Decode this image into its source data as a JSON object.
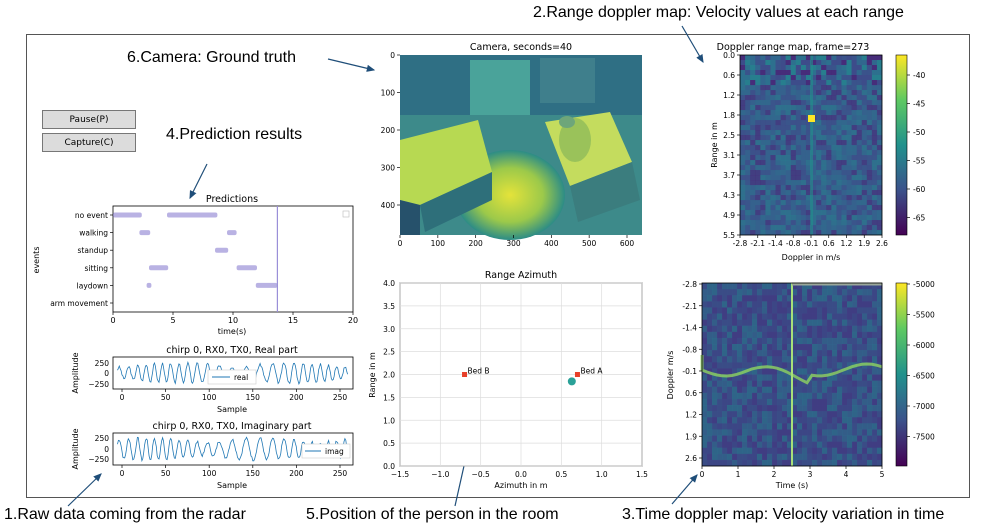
{
  "callouts": {
    "c1": "1.Raw data coming from the radar",
    "c2": "2.Range doppler map: Velocity values at each range",
    "c3": "3.Time doppler map: Velocity variation in time",
    "c4": "4.Prediction results",
    "c5": "5.Position of the person in the room",
    "c6": "6.Camera: Ground truth"
  },
  "buttons": {
    "pause": "Pause(P)",
    "capture": "Capture(C)"
  },
  "colors": {
    "accent_arrow": "#1f4e79",
    "prediction_mark": "#8a7fd0",
    "time_cursor": "#9a8fd8",
    "signal_line": "#1f77b4",
    "marker_red": "#e8402a",
    "marker_teal": "#2aa198",
    "viridis_dark": "#440154",
    "viridis_yellow": "#fde725"
  },
  "predictions": {
    "title": "Predictions",
    "ylabel": "events",
    "xlabel": "time(s)",
    "xticks": [
      "0",
      "5",
      "10",
      "15",
      "20"
    ],
    "current_time": 13.7
  },
  "camera": {
    "title": "Camera, seconds=40",
    "xticks": [
      "0",
      "100",
      "200",
      "300",
      "400",
      "500",
      "600"
    ],
    "yticks": [
      "0",
      "100",
      "200",
      "300",
      "400"
    ]
  },
  "range_doppler": {
    "title": "Doppler range map, frame=273",
    "xlabel": "Doppler in m/s",
    "ylabel": "Range in m",
    "xticks": [
      "-2.8",
      "-2.1",
      "-1.4",
      "-0.8",
      "-0.1",
      "0.6",
      "1.2",
      "1.9",
      "2.6"
    ],
    "yticks": [
      "0.0",
      "0.6",
      "1.2",
      "1.8",
      "2.5",
      "3.1",
      "3.7",
      "4.3",
      "4.9",
      "5.5"
    ],
    "colorbar_ticks": [
      "-40",
      "-45",
      "-50",
      "-55",
      "-60",
      "-65"
    ]
  },
  "time_doppler": {
    "xlabel": "Time (s)",
    "ylabel": "Doppler m/s",
    "xticks": [
      "0",
      "1",
      "2",
      "3",
      "4",
      "5"
    ],
    "yticks": [
      "-2.8",
      "-2.1",
      "-1.4",
      "-0.8",
      "-0.1",
      "0.6",
      "1.2",
      "1.9",
      "2.6"
    ],
    "colorbar_ticks": [
      "-5000",
      "-5500",
      "-6000",
      "-6500",
      "-7000",
      "-7500"
    ],
    "cursor_time": 2.5
  },
  "real_part": {
    "title": "chirp 0, RX0, TX0, Real part",
    "ylabel": "Amplitude",
    "xlabel": "Sample",
    "legend": "real",
    "xticks": [
      "0",
      "50",
      "100",
      "150",
      "200",
      "250"
    ],
    "yticks": [
      "250",
      "0",
      "−250"
    ]
  },
  "imag_part": {
    "title": "chirp 0, RX0, TX0, Imaginary part",
    "ylabel": "Amplitude",
    "xlabel": "Sample",
    "legend": "imag",
    "xticks": [
      "0",
      "50",
      "100",
      "150",
      "200",
      "250"
    ],
    "yticks": [
      "250",
      "0",
      "−250"
    ]
  },
  "chart_data": [
    {
      "type": "scatter",
      "title": "Predictions",
      "xlabel": "time(s)",
      "ylabel": "events",
      "categories": [
        "no event",
        "walking",
        "standup",
        "sitting",
        "laydown",
        "arm movement"
      ],
      "xlim": [
        0,
        20
      ],
      "segments": [
        {
          "event": "no event",
          "start": 0,
          "end": 2.4
        },
        {
          "event": "no event",
          "start": 4.5,
          "end": 8.7
        },
        {
          "event": "walking",
          "start": 2.2,
          "end": 3.1
        },
        {
          "event": "walking",
          "start": 9.5,
          "end": 10.3
        },
        {
          "event": "standup",
          "start": 8.5,
          "end": 9.6
        },
        {
          "event": "sitting",
          "start": 3.0,
          "end": 4.6
        },
        {
          "event": "sitting",
          "start": 10.3,
          "end": 12.0
        },
        {
          "event": "laydown",
          "start": 2.8,
          "end": 3.2
        },
        {
          "event": "laydown",
          "start": 11.9,
          "end": 13.7
        }
      ]
    },
    {
      "type": "scatter",
      "title": "Range Azimuth",
      "xlabel": "Azimuth in m",
      "ylabel": "Range in m",
      "xlim": [
        -1.5,
        1.5
      ],
      "ylim": [
        0,
        4
      ],
      "xticks": [
        "−1.5",
        "−1.0",
        "−0.5",
        "0.0",
        "0.5",
        "1.0",
        "1.5"
      ],
      "yticks": [
        "0.0",
        "0.5",
        "1.0",
        "1.5",
        "2.0",
        "2.5",
        "3.0",
        "3.5",
        "4.0"
      ],
      "grid": true,
      "points": [
        {
          "label": "Bed B",
          "x": -0.7,
          "y": 2.0,
          "marker": "square"
        },
        {
          "label": "Bed A",
          "x": 0.7,
          "y": 2.0,
          "marker": "square"
        },
        {
          "label": "",
          "x": 0.63,
          "y": 1.85,
          "marker": "circle"
        }
      ]
    }
  ]
}
